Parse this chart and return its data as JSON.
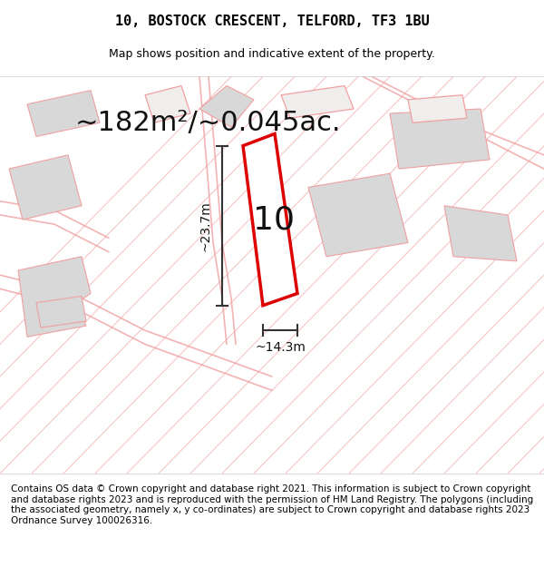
{
  "title": "10, BOSTOCK CRESCENT, TELFORD, TF3 1BU",
  "subtitle": "Map shows position and indicative extent of the property.",
  "area_text": "~182m²/~0.045ac.",
  "number_label": "10",
  "dim_width": "~14.3m",
  "dim_height": "~23.7m",
  "footer": "Contains OS data © Crown copyright and database right 2021. This information is subject to Crown copyright and database rights 2023 and is reproduced with the permission of HM Land Registry. The polygons (including the associated geometry, namely x, y co-ordinates) are subject to Crown copyright and database rights 2023 Ordnance Survey 100026316.",
  "bg_color": "#f5f5f5",
  "map_bg": "#f0eeec",
  "red_plot_color": "#dd0000",
  "gray_building_color": "#d8d8d8",
  "road_line_color": "#f0a0a0",
  "dim_line_color": "#333333",
  "title_fontsize": 11,
  "subtitle_fontsize": 9,
  "area_fontsize": 22,
  "number_fontsize": 26,
  "footer_fontsize": 7.5
}
